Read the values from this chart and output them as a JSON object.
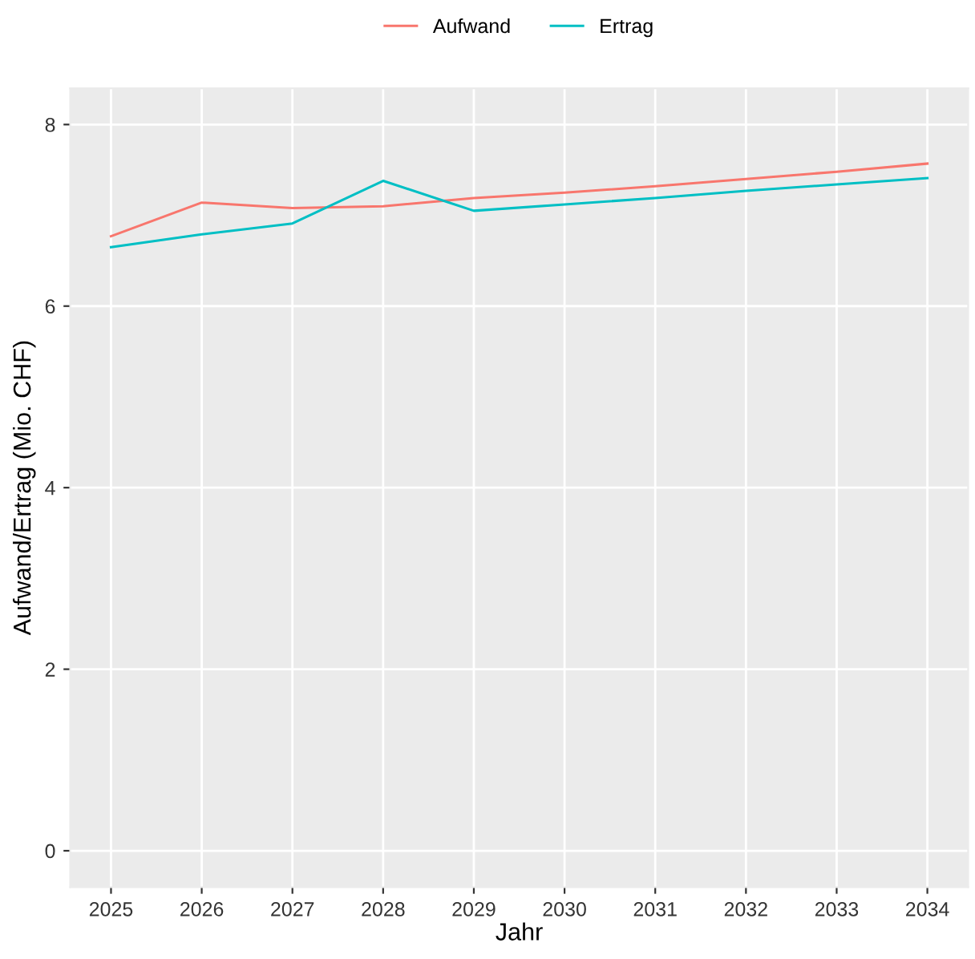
{
  "chart_data": {
    "type": "line",
    "xlabel": "Jahr",
    "ylabel": "Aufwand/Ertrag (Mio. CHF)",
    "x": [
      2025,
      2026,
      2027,
      2028,
      2029,
      2030,
      2031,
      2032,
      2033,
      2034
    ],
    "series": [
      {
        "name": "Aufwand",
        "color": "#f8766d",
        "values": [
          6.77,
          7.14,
          7.08,
          7.1,
          7.19,
          7.25,
          7.32,
          7.4,
          7.48,
          7.57
        ]
      },
      {
        "name": "Ertrag",
        "color": "#00bfc4",
        "values": [
          6.65,
          6.79,
          6.91,
          7.38,
          7.05,
          7.12,
          7.19,
          7.27,
          7.34,
          7.41
        ]
      }
    ],
    "xlim": [
      2024.55,
      2034.45
    ],
    "xticks": [
      2025,
      2026,
      2027,
      2028,
      2029,
      2030,
      2031,
      2032,
      2033,
      2034
    ],
    "ylim": [
      -0.4,
      8.4
    ],
    "yticks": [
      0,
      2,
      4,
      6,
      8
    ],
    "grid": true,
    "legend": "top",
    "marker": "none",
    "line_style": "solid"
  }
}
